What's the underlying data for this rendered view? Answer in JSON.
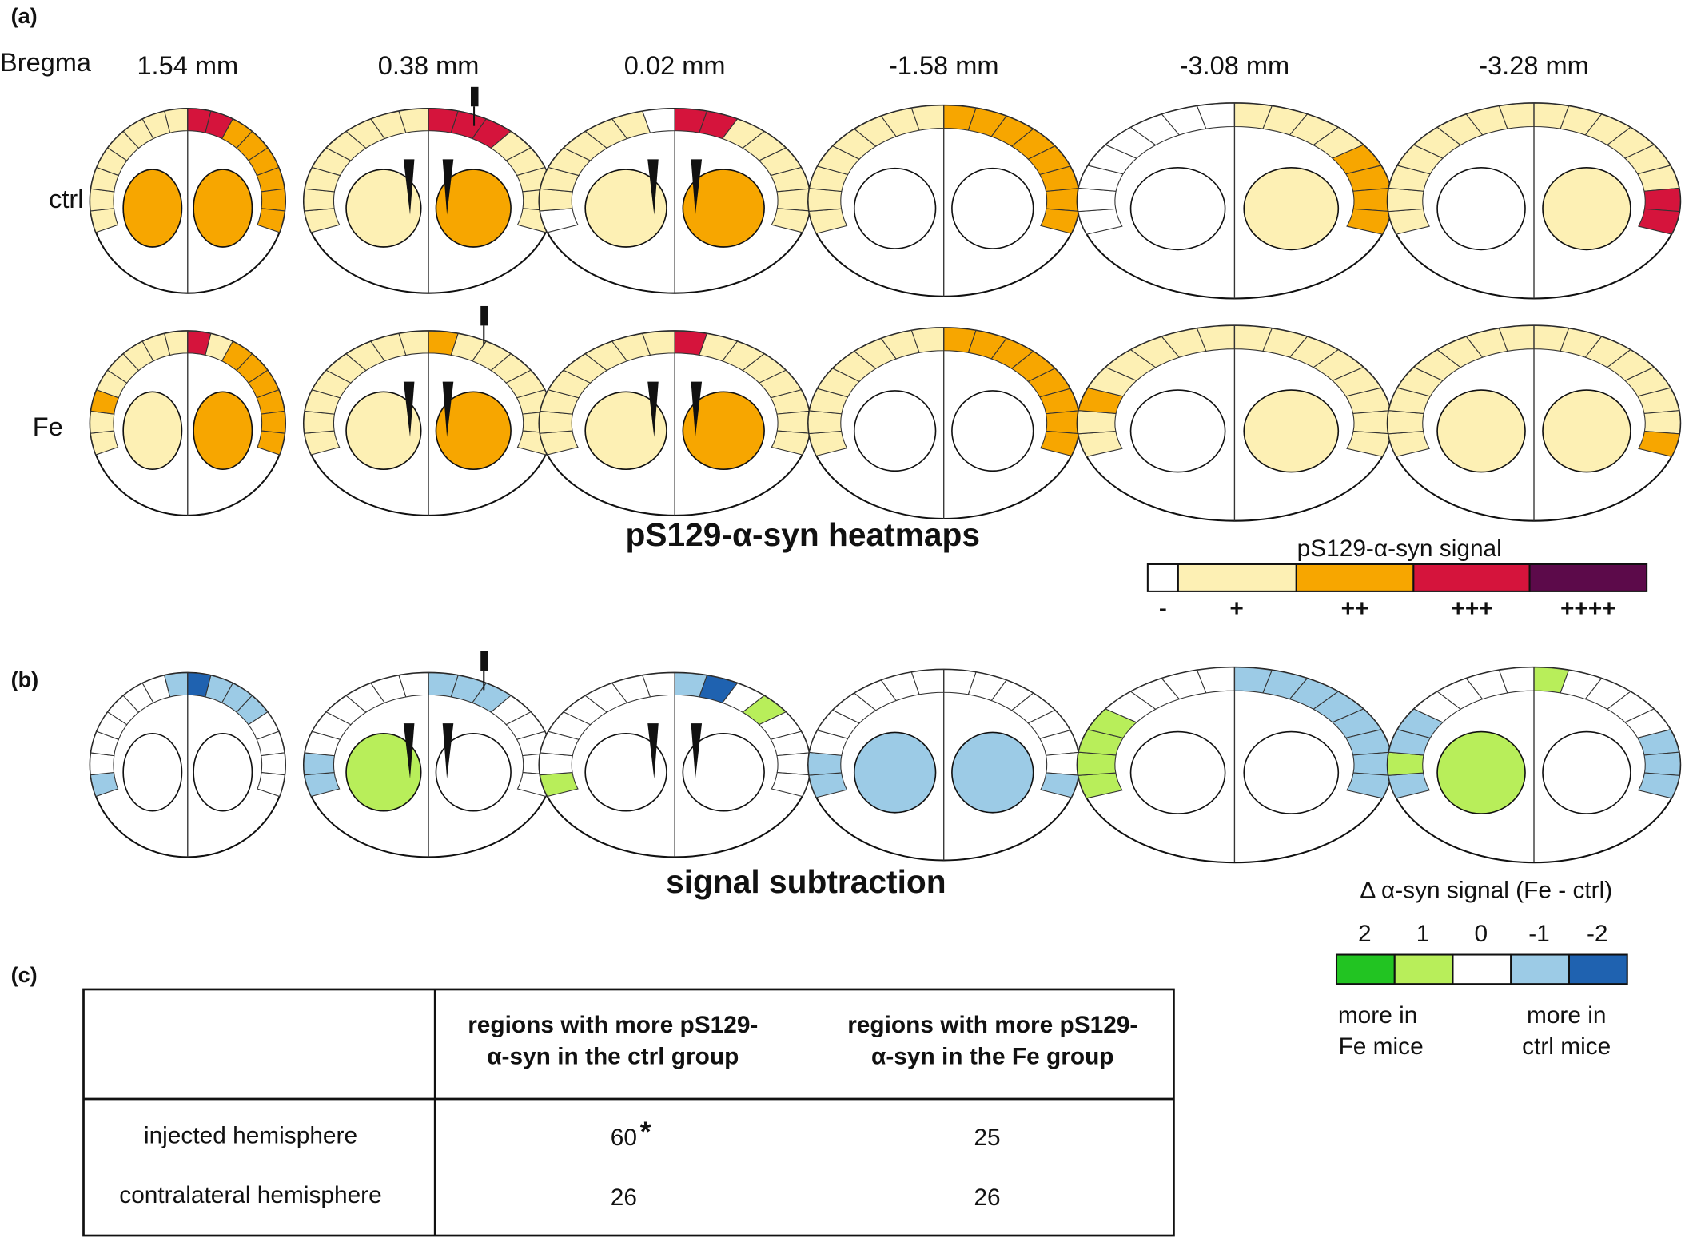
{
  "panels": [
    "(a)",
    "(b)",
    "(c)"
  ],
  "bregma": {
    "label": "Bregma",
    "levels": [
      "1.54 mm",
      "0.38 mm",
      "0.02 mm",
      "-1.58 mm",
      "-3.08 mm",
      "-3.28 mm"
    ]
  },
  "heatmaps": {
    "rows": [
      "ctrl",
      "Fe"
    ],
    "title": "pS129-α-syn heatmaps",
    "legend": {
      "title": "pS129-α-syn signal",
      "levels": [
        "-",
        "+",
        "++",
        "+++",
        "++++"
      ],
      "colors": [
        "#ffffff",
        "#fdf0b4",
        "#f7a600",
        "#d5143c",
        "#5c0a4a"
      ]
    }
  },
  "subtraction": {
    "title": "signal subtraction",
    "legend": {
      "title": "Δ α-syn signal (Fe - ctrl)",
      "levels": [
        "2",
        "1",
        "0",
        "-1",
        "-2"
      ],
      "colors": [
        "#22c422",
        "#b8ee5a",
        "#ffffff",
        "#9ccbe6",
        "#1f62b0"
      ],
      "left_note": [
        "more in",
        "Fe mice"
      ],
      "right_note": [
        "more in",
        "ctrl mice"
      ]
    }
  },
  "table": {
    "header": [
      [
        "regions with more pS129-",
        "α-syn in the ctrl group"
      ],
      [
        "regions with more pS129-",
        "α-syn in the Fe group"
      ]
    ],
    "rows": [
      {
        "label": "injected hemisphere",
        "cells": [
          60,
          25
        ],
        "mark": "*"
      },
      {
        "label": "contralateral hemisphere",
        "cells": [
          26,
          26
        ]
      }
    ]
  }
}
